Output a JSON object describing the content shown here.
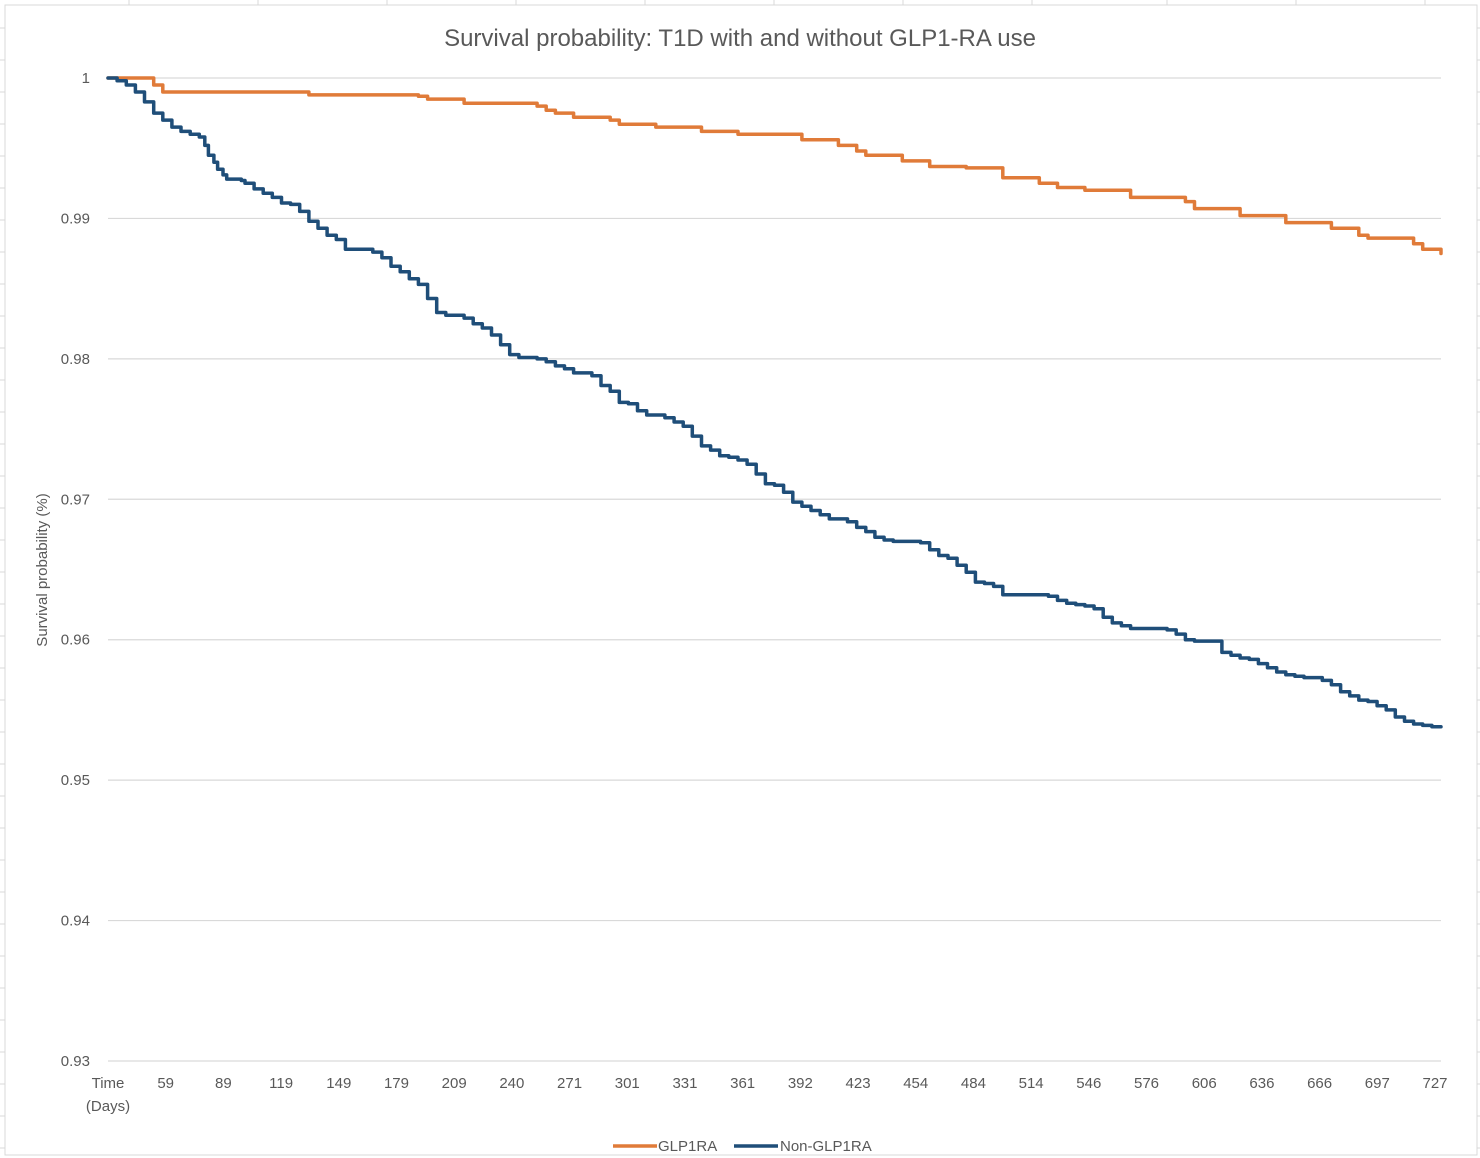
{
  "chart_data": {
    "type": "line",
    "title": "Survival probability: T1D with and without GLP1-RA use",
    "xlabel": "",
    "ylabel": "Survival probability (%)",
    "x_first_tick_label": [
      "Time",
      "(Days)"
    ],
    "x_tick_labels": [
      "59",
      "89",
      "119",
      "149",
      "179",
      "209",
      "240",
      "271",
      "301",
      "331",
      "361",
      "392",
      "423",
      "454",
      "484",
      "514",
      "546",
      "576",
      "606",
      "636",
      "666",
      "697",
      "727"
    ],
    "y_tick_labels": [
      "0.93",
      "0.94",
      "0.95",
      "0.96",
      "0.97",
      "0.98",
      "0.99",
      "1"
    ],
    "xlim": [
      0,
      730
    ],
    "ylim": [
      0.93,
      1
    ],
    "grid": "horizontal",
    "legend_position": "bottom",
    "series": [
      {
        "name": "GLP1RA",
        "color": "#E07B39",
        "x": [
          0,
          20,
          25,
          30,
          105,
          110,
          150,
          170,
          175,
          190,
          195,
          205,
          230,
          235,
          240,
          245,
          255,
          275,
          280,
          300,
          325,
          330,
          345,
          370,
          380,
          390,
          400,
          410,
          415,
          425,
          435,
          445,
          450,
          465,
          470,
          485,
          490,
          510,
          515,
          520,
          535,
          540,
          560,
          565,
          575,
          590,
          595,
          615,
          620,
          640,
          645,
          650,
          665,
          670,
          685,
          690,
          700,
          705,
          715,
          720,
          730
        ],
        "y": [
          1.0,
          1.0,
          0.9995,
          0.999,
          0.999,
          0.9988,
          0.9988,
          0.9987,
          0.9985,
          0.9985,
          0.9982,
          0.9982,
          0.9982,
          0.998,
          0.9977,
          0.9975,
          0.9972,
          0.997,
          0.9967,
          0.9965,
          0.9962,
          0.9962,
          0.996,
          0.996,
          0.9956,
          0.9956,
          0.9952,
          0.9948,
          0.9945,
          0.9945,
          0.9941,
          0.9941,
          0.9937,
          0.9937,
          0.9936,
          0.9936,
          0.9929,
          0.9925,
          0.9925,
          0.9922,
          0.992,
          0.992,
          0.9915,
          0.9915,
          0.9915,
          0.9912,
          0.9907,
          0.9907,
          0.9902,
          0.9902,
          0.9897,
          0.9897,
          0.9897,
          0.9893,
          0.9888,
          0.9886,
          0.9886,
          0.9886,
          0.9882,
          0.9878,
          0.9875
        ]
      },
      {
        "name": "Non-GLP1RA",
        "color": "#1F4E79",
        "x": [
          0,
          5,
          10,
          15,
          20,
          25,
          30,
          35,
          40,
          45,
          48,
          50,
          53,
          55,
          58,
          60,
          63,
          65,
          68,
          70,
          73,
          75,
          80,
          85,
          90,
          95,
          100,
          105,
          110,
          115,
          120,
          125,
          130,
          135,
          140,
          145,
          150,
          155,
          160,
          165,
          170,
          175,
          180,
          185,
          190,
          195,
          200,
          205,
          210,
          215,
          220,
          225,
          230,
          235,
          240,
          245,
          250,
          255,
          260,
          265,
          270,
          275,
          280,
          285,
          290,
          295,
          300,
          305,
          310,
          315,
          320,
          325,
          330,
          335,
          340,
          345,
          350,
          355,
          360,
          365,
          370,
          375,
          380,
          385,
          390,
          395,
          400,
          405,
          410,
          415,
          420,
          425,
          430,
          435,
          440,
          445,
          450,
          455,
          460,
          465,
          470,
          475,
          480,
          485,
          490,
          495,
          500,
          505,
          510,
          515,
          520,
          525,
          530,
          535,
          540,
          545,
          550,
          555,
          560,
          565,
          570,
          575,
          580,
          585,
          590,
          595,
          600,
          605,
          610,
          615,
          620,
          625,
          630,
          635,
          640,
          645,
          650,
          655,
          660,
          665,
          670,
          675,
          680,
          685,
          690,
          695,
          700,
          705,
          710,
          715,
          720,
          725,
          730
        ],
        "y": [
          1.0,
          0.9998,
          0.9995,
          0.999,
          0.9983,
          0.9975,
          0.997,
          0.9965,
          0.9962,
          0.996,
          0.996,
          0.9958,
          0.9952,
          0.9945,
          0.994,
          0.9935,
          0.9931,
          0.9928,
          0.9928,
          0.9928,
          0.9927,
          0.9925,
          0.9921,
          0.9918,
          0.9915,
          0.9911,
          0.991,
          0.9905,
          0.9898,
          0.9893,
          0.9888,
          0.9885,
          0.9878,
          0.9878,
          0.9878,
          0.9876,
          0.9872,
          0.9866,
          0.9862,
          0.9857,
          0.9853,
          0.9843,
          0.9833,
          0.9831,
          0.9831,
          0.9829,
          0.9825,
          0.9822,
          0.9817,
          0.981,
          0.9803,
          0.9801,
          0.9801,
          0.98,
          0.9798,
          0.9795,
          0.9793,
          0.979,
          0.979,
          0.9788,
          0.9781,
          0.9777,
          0.9769,
          0.9768,
          0.9763,
          0.976,
          0.976,
          0.9758,
          0.9755,
          0.9752,
          0.9745,
          0.9738,
          0.9735,
          0.9731,
          0.973,
          0.9728,
          0.9725,
          0.9718,
          0.9711,
          0.971,
          0.9705,
          0.9698,
          0.9695,
          0.9692,
          0.9689,
          0.9686,
          0.9686,
          0.9684,
          0.968,
          0.9677,
          0.9673,
          0.9671,
          0.967,
          0.967,
          0.967,
          0.9669,
          0.9664,
          0.966,
          0.9658,
          0.9653,
          0.9648,
          0.9641,
          0.964,
          0.9638,
          0.9632,
          0.9632,
          0.9632,
          0.9632,
          0.9632,
          0.9631,
          0.9628,
          0.9626,
          0.9625,
          0.9624,
          0.9622,
          0.9616,
          0.9612,
          0.961,
          0.9608,
          0.9608,
          0.9608,
          0.9608,
          0.9607,
          0.9604,
          0.96,
          0.9599,
          0.9599,
          0.9599,
          0.9591,
          0.9589,
          0.9587,
          0.9586,
          0.9583,
          0.958,
          0.9577,
          0.9575,
          0.9574,
          0.9573,
          0.9573,
          0.9571,
          0.9568,
          0.9563,
          0.956,
          0.9557,
          0.9556,
          0.9553,
          0.955,
          0.9545,
          0.9542,
          0.954,
          0.9539,
          0.9538,
          0.9538
        ]
      }
    ]
  }
}
